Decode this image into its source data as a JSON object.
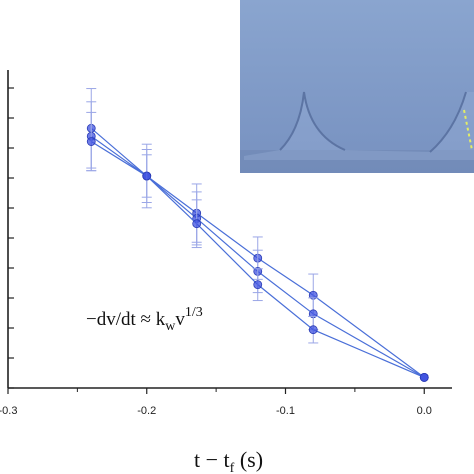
{
  "chart_data": {
    "type": "line",
    "xlabel": "t − t_f (s)",
    "xlabel_main": "t − t",
    "xlabel_sub": "f",
    "xlabel_unit": " (s)",
    "xlim": [
      -0.3,
      0.02
    ],
    "ylim": [
      0,
      1.2
    ],
    "x_ticks": [
      "-0.3",
      "-0.2",
      "-0.1",
      "0.0"
    ],
    "annotation": {
      "main": "−dv/dt ≈ k",
      "sub": "w",
      "base": "v",
      "sup": "1/3"
    },
    "series": [
      {
        "x": [
          -0.24,
          -0.2,
          -0.164,
          -0.12,
          -0.08,
          0.0
        ],
        "y": [
          0.98,
          0.8,
          0.66,
          0.49,
          0.35,
          0.04
        ],
        "err": [
          0.15,
          0.12,
          0.11,
          0.08,
          0.08,
          0.0
        ]
      },
      {
        "x": [
          -0.24,
          -0.2,
          -0.164,
          -0.12,
          -0.08,
          0.0
        ],
        "y": [
          0.95,
          0.8,
          0.64,
          0.44,
          0.28,
          0.04
        ],
        "err": [
          0.13,
          0.1,
          0.1,
          0.08,
          0.06,
          0.0
        ]
      },
      {
        "x": [
          -0.24,
          -0.2,
          -0.164,
          -0.12,
          -0.08,
          0.0
        ],
        "y": [
          0.93,
          0.8,
          0.62,
          0.39,
          0.22,
          0.04
        ],
        "err": [
          0.11,
          0.08,
          0.09,
          0.06,
          0.05,
          0.0
        ]
      }
    ],
    "colors": {
      "line": "#4a6fd8",
      "marker": "#3f52e0",
      "error": "#9aa6e6",
      "axis": "#222222"
    },
    "inset": {
      "type": "photo",
      "background": "#7f9cc9",
      "highlight": "#dde86a"
    }
  }
}
